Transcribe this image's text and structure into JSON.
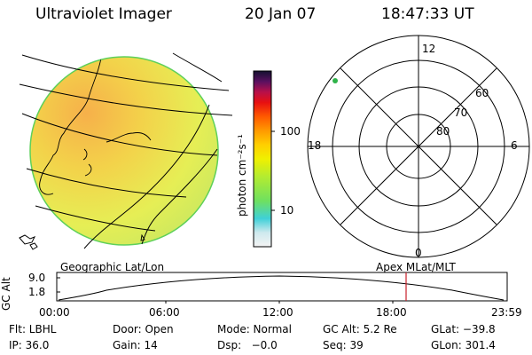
{
  "header": {
    "title": "Ultraviolet Imager",
    "date": "20 Jan 07",
    "time": "18:47:33 UT"
  },
  "colorbar": {
    "unit_label": "photon cm⁻²s⁻¹",
    "ticks": [
      "100",
      "10"
    ]
  },
  "polar": {
    "mlt_labels": [
      "12",
      "18",
      "6",
      "0"
    ],
    "lat_labels": [
      "60",
      "70",
      "80"
    ]
  },
  "labels": {
    "left": "Geographic Lat/Lon",
    "right": "Apex MLat/MLT"
  },
  "altitude_plot": {
    "axis_label": "GC Alt",
    "y_ticks": [
      "9.0",
      "1.8"
    ],
    "x_ticks": [
      "00:00",
      "06:00",
      "12:00",
      "18:00",
      "23:59"
    ]
  },
  "info": {
    "row1": [
      "Flt: LBHL",
      "Door: Open",
      "Mode: Normal",
      "GC Alt: 5.2 Re",
      "GLat: −39.8"
    ],
    "row2": [
      "IP: 36.0",
      "Gain: 14",
      "Dsp:   −0.0",
      "Seq: 39",
      "GLon: 301.4"
    ]
  },
  "colors": {
    "marker": "#c8202a",
    "dot": "#2fb34a"
  }
}
